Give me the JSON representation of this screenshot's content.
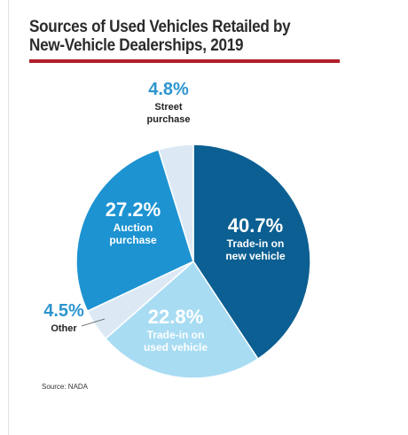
{
  "title_lines": [
    "Sources of Used Vehicles Retailed by",
    "New-Vehicle Dealerships, 2019"
  ],
  "source": "Source: NADA",
  "colors": {
    "title_rule": "#b11e2a",
    "pct_label_outside": "#2d95cf",
    "label_dark": "#ffffff"
  },
  "chart_data": {
    "type": "pie",
    "title": "Sources of Used Vehicles Retailed by New-Vehicle Dealerships, 2019",
    "start_angle_deg": 0,
    "direction": "clockwise",
    "slices": [
      {
        "label": "Trade-in on new vehicle",
        "label_lines": [
          "Trade-in on",
          "new vehicle"
        ],
        "pct": "40.7%",
        "value": 40.7,
        "color": "#0b5f92",
        "text_color": "#ffffff",
        "label_position": "inside"
      },
      {
        "label": "Trade-in on used vehicle",
        "label_lines": [
          "Trade-in on",
          "used vehicle"
        ],
        "pct": "22.8%",
        "value": 22.8,
        "color": "#a8dcf3",
        "text_color": "#ffffff",
        "label_position": "inside"
      },
      {
        "label": "Other",
        "label_lines": [
          "Other"
        ],
        "pct": "4.5%",
        "value": 4.5,
        "color": "#dce9f5",
        "text_color": "#222222",
        "label_position": "outside"
      },
      {
        "label": "Auction purchase",
        "label_lines": [
          "Auction",
          "purchase"
        ],
        "pct": "27.2%",
        "value": 27.2,
        "color": "#1d93d2",
        "text_color": "#ffffff",
        "label_position": "inside"
      },
      {
        "label": "Street purchase",
        "label_lines": [
          "Street",
          "purchase"
        ],
        "pct": "4.8%",
        "value": 4.8,
        "color": "#dce9f5",
        "text_color": "#222222",
        "label_position": "outside"
      }
    ]
  }
}
